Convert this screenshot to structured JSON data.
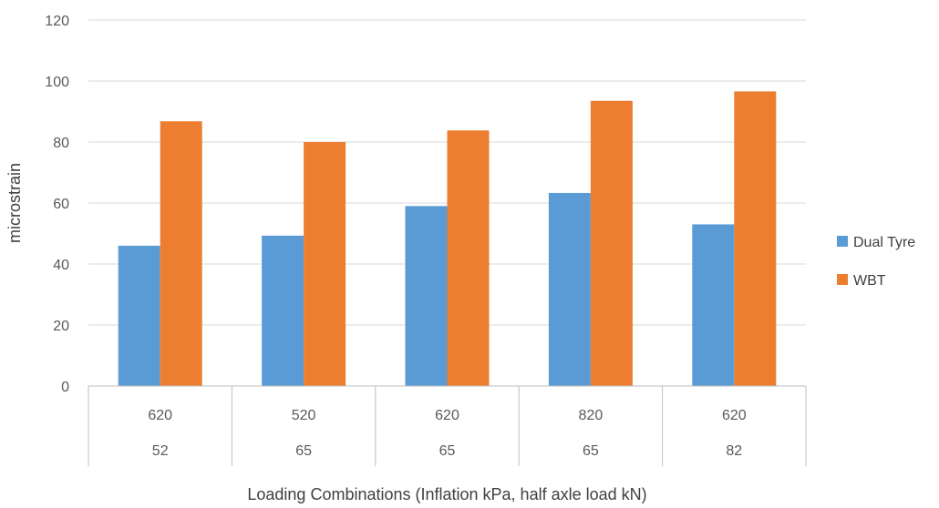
{
  "chart_data": {
    "type": "bar",
    "categories": [
      {
        "inflation": "620",
        "load": "52"
      },
      {
        "inflation": "520",
        "load": "65"
      },
      {
        "inflation": "620",
        "load": "65"
      },
      {
        "inflation": "820",
        "load": "65"
      },
      {
        "inflation": "620",
        "load": "82"
      }
    ],
    "series": [
      {
        "name": "Dual Tyre",
        "color": "#5B9BD5",
        "values": [
          46,
          49.3,
          59,
          63.3,
          53
        ]
      },
      {
        "name": "WBT",
        "color": "#ED7D31",
        "values": [
          86.8,
          80,
          83.8,
          93.5,
          96.6
        ]
      }
    ],
    "xlabel": "Loading Combinations (Inflation kPa, half axle load kN)",
    "ylabel": "microstrain",
    "ylim": [
      0,
      120
    ],
    "yticks": [
      0,
      20,
      40,
      60,
      80,
      100,
      120
    ],
    "grid": true,
    "legend": "right"
  }
}
